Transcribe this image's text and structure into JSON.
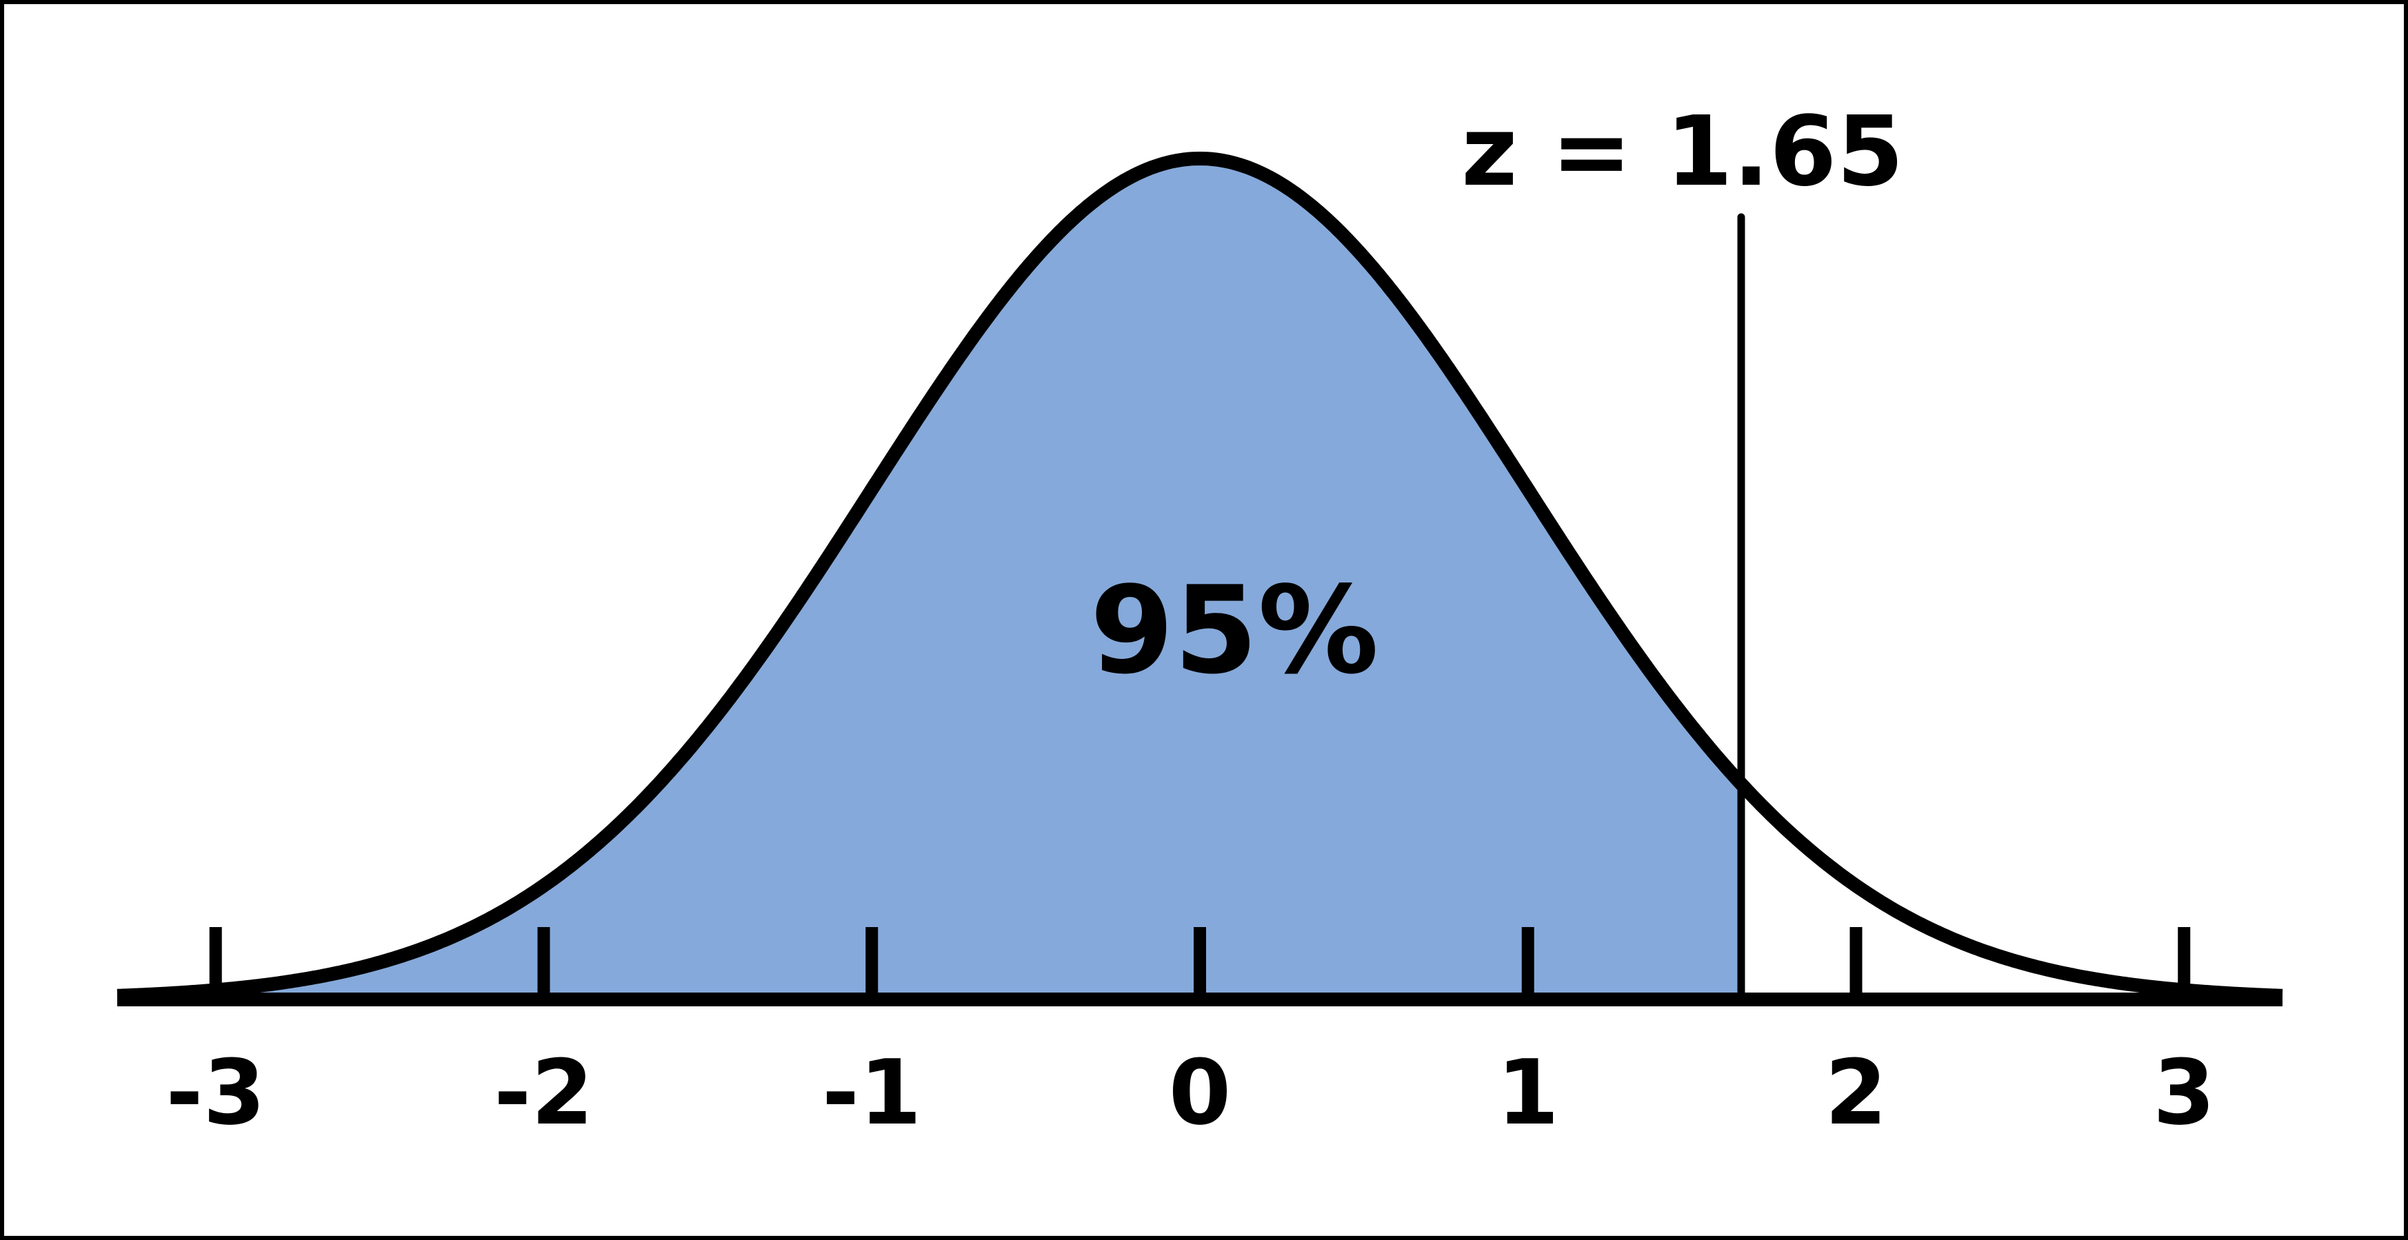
{
  "diagram": {
    "type": "normal-distribution-shaded-area",
    "curve": "standard normal",
    "x_ticks": [
      -3,
      -2,
      -1,
      0,
      1,
      2,
      3
    ],
    "x_tick_labels": [
      "-3",
      "-2",
      "-1",
      "0",
      "1",
      "2",
      "3"
    ],
    "x_range": [
      -3.3,
      3.3
    ],
    "shaded_region": {
      "from": "-infinity",
      "to": 1.65
    },
    "shaded_area_label": "95%",
    "cutoff_value": 1.65,
    "cutoff_label": "z = 1.65",
    "colors": {
      "fill": "#85a9da",
      "stroke": "#000000",
      "background": "#ffffff",
      "frame": "#000000"
    }
  }
}
